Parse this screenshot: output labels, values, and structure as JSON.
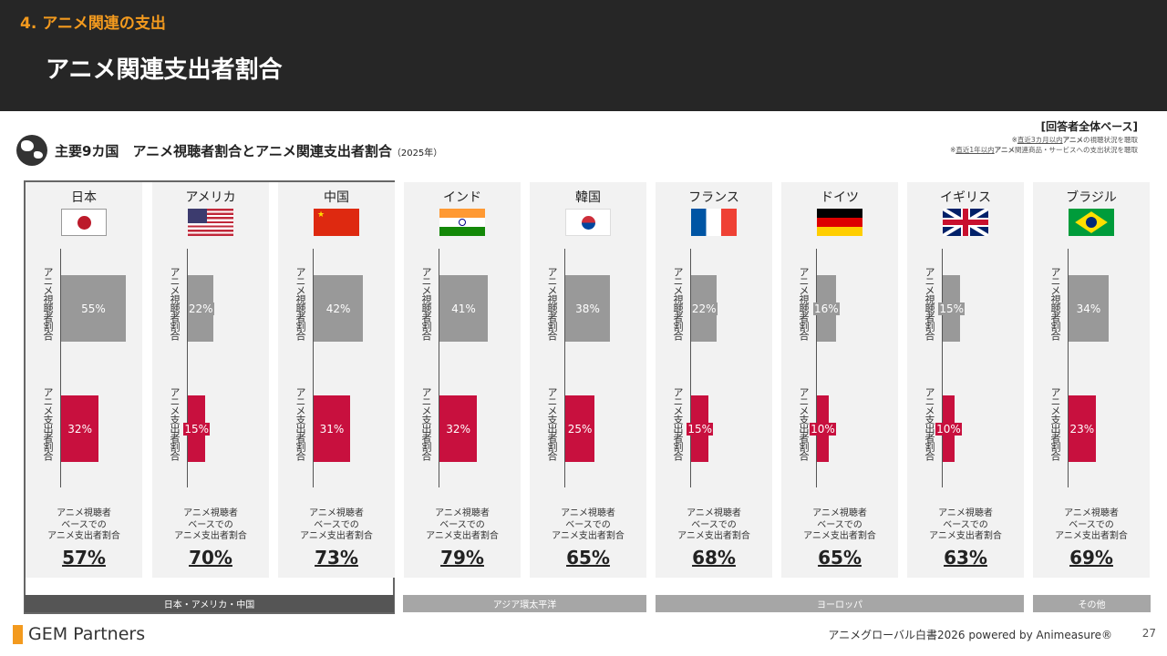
{
  "header": {
    "section": "4. アニメ関連の支出",
    "title": "アニメ関連支出者割合"
  },
  "base_label": "[回答者全体ベース]",
  "notes": [
    {
      "pre": "※",
      "u": "直近3カ月以内",
      "b": "アニメ",
      "post": "の視聴状況を聴取"
    },
    {
      "pre": "※",
      "u": "直近1年以内",
      "b": "アニメ",
      "post": "関連商品・サービスへの支出状況を聴取"
    }
  ],
  "subtitle": {
    "main": "主要9カ国　アニメ視聴者割合とアニメ関連支出者割合",
    "year": "（2025年）"
  },
  "labels": {
    "viewer": "アニメ視聴者割合",
    "spender": "アニメ支出者割合",
    "caption": [
      "アニメ視聴者",
      "ベースでの",
      "アニメ支出者割合"
    ]
  },
  "colors": {
    "viewer": "#999999",
    "spender": "#c8103e",
    "accent": "#f39a1e"
  },
  "countries": [
    {
      "name": "日本",
      "flag": "japan",
      "viewer": "55%",
      "viewer_value": 55,
      "spender": "32%",
      "spender_value": 32,
      "ratio": "57%"
    },
    {
      "name": "アメリカ",
      "flag": "usa",
      "viewer": "22%",
      "viewer_value": 22,
      "spender": "15%",
      "spender_value": 15,
      "ratio": "70%"
    },
    {
      "name": "中国",
      "flag": "china",
      "viewer": "42%",
      "viewer_value": 42,
      "spender": "31%",
      "spender_value": 31,
      "ratio": "73%"
    },
    {
      "name": "インド",
      "flag": "india",
      "viewer": "41%",
      "viewer_value": 41,
      "spender": "32%",
      "spender_value": 32,
      "ratio": "79%"
    },
    {
      "name": "韓国",
      "flag": "korea",
      "viewer": "38%",
      "viewer_value": 38,
      "spender": "25%",
      "spender_value": 25,
      "ratio": "65%"
    },
    {
      "name": "フランス",
      "flag": "france",
      "viewer": "22%",
      "viewer_value": 22,
      "spender": "15%",
      "spender_value": 15,
      "ratio": "68%"
    },
    {
      "name": "ドイツ",
      "flag": "germany",
      "viewer": "16%",
      "viewer_value": 16,
      "spender": "10%",
      "spender_value": 10,
      "ratio": "65%"
    },
    {
      "name": "イギリス",
      "flag": "uk",
      "viewer": "15%",
      "viewer_value": 15,
      "spender": "10%",
      "spender_value": 10,
      "ratio": "63%"
    },
    {
      "name": "ブラジル",
      "flag": "brazil",
      "viewer": "34%",
      "viewer_value": 34,
      "spender": "23%",
      "spender_value": 23,
      "ratio": "69%"
    }
  ],
  "regions": [
    "日本・アメリカ・中国",
    "アジア環太平洋",
    "ヨーロッパ",
    "その他"
  ],
  "footer": {
    "logo": "GEM Partners",
    "source": "アニメグローバル白書2026 powered by Animeasure®",
    "page": "27"
  }
}
